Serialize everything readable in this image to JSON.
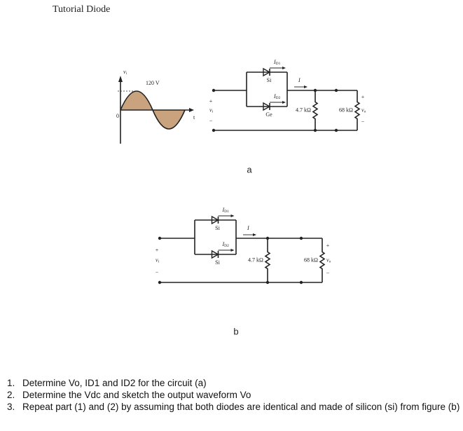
{
  "header": {
    "title": "Tutorial Diode"
  },
  "figure_a": {
    "waveform": {
      "axis_label": {
        "main": "v",
        "sub": "i"
      },
      "peak_label": "120 V",
      "time_label": "t",
      "origin_label": "0"
    },
    "input": {
      "plus": "+",
      "label": {
        "main": "v",
        "sub": "i"
      },
      "minus": "−"
    },
    "diode_top": {
      "current": {
        "main": "I",
        "sub": "D1"
      },
      "material": "Si"
    },
    "diode_bottom": {
      "current": {
        "main": "I",
        "sub": "D2"
      },
      "material": "Ge"
    },
    "current": "I",
    "r1": "4.7 kΩ",
    "r2": "68 kΩ",
    "output": {
      "plus": "+",
      "label": {
        "main": "v",
        "sub": "o"
      },
      "minus": "−"
    },
    "caption": "a"
  },
  "figure_b": {
    "input": {
      "plus": "+",
      "label": {
        "main": "v",
        "sub": "i"
      },
      "minus": "−"
    },
    "diode_top": {
      "current": {
        "main": "I",
        "sub": "D1"
      },
      "material": "Si"
    },
    "diode_bottom": {
      "current": {
        "main": "I",
        "sub": "D2"
      },
      "material": "Si"
    },
    "current": "I",
    "r1": "4.7 kΩ",
    "r2": "68 kΩ",
    "output": {
      "plus": "+",
      "label": {
        "main": "v",
        "sub": "o"
      },
      "minus": "−"
    },
    "caption": "b"
  },
  "questions": [
    {
      "number": "1.",
      "text": "Determine Vo, ID1 and ID2 for the circuit (a)"
    },
    {
      "number": "2.",
      "text": "Determine the Vdc and sketch the output waveform Vo"
    },
    {
      "number": "3.",
      "text": "Repeat part (1) and (2) by assuming that both diodes are identical and made of silicon (si) from figure (b)"
    }
  ]
}
